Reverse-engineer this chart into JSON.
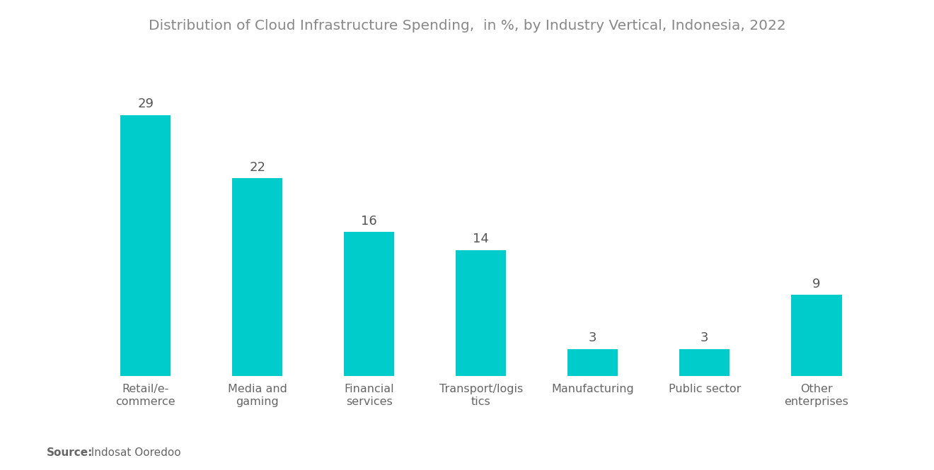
{
  "title": "Distribution of Cloud Infrastructure Spending,  in %, by Industry Vertical, Indonesia, 2022",
  "categories": [
    "Retail/e-\ncommerce",
    "Media and\ngaming",
    "Financial\nservices",
    "Transport/logis\ntics",
    "Manufacturing",
    "Public sector",
    "Other\nenterprises"
  ],
  "values": [
    29,
    22,
    16,
    14,
    3,
    3,
    9
  ],
  "bar_color": "#00CCCC",
  "background_color": "#ffffff",
  "title_color": "#888888",
  "label_color": "#666666",
  "value_color": "#555555",
  "source_bold": "Source:",
  "source_text": "  Indosat Ooredoo",
  "title_fontsize": 14.5,
  "label_fontsize": 11.5,
  "value_fontsize": 13,
  "source_fontsize": 11,
  "ylim": [
    0,
    35
  ],
  "bar_width": 0.45
}
